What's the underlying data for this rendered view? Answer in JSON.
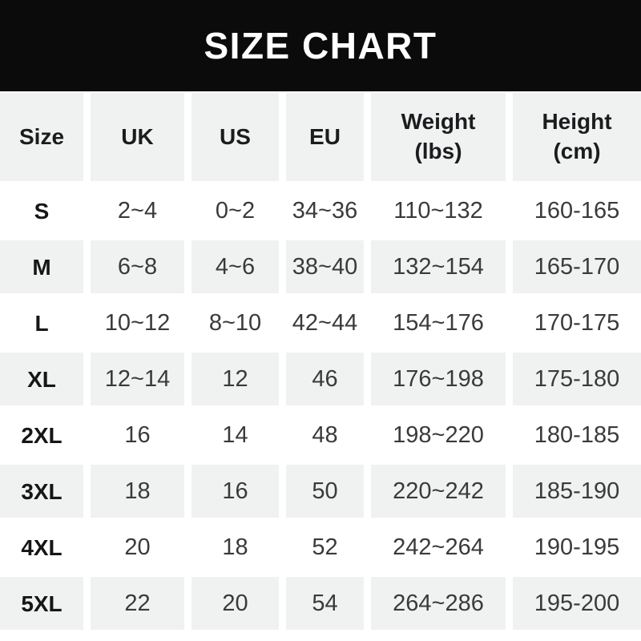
{
  "title": "SIZE CHART",
  "colors": {
    "banner_bg": "#0b0b0b",
    "banner_text": "#ffffff",
    "row_gray": "#f0f1f1",
    "page_bg": "#ffffff",
    "header_text": "#1c1c1e",
    "data_text": "#3a3a3c"
  },
  "table": {
    "headers": [
      {
        "label": "Size"
      },
      {
        "label": "UK"
      },
      {
        "label": "US"
      },
      {
        "label": "EU"
      },
      {
        "label": "Weight",
        "unit": "(lbs)"
      },
      {
        "label": "Height",
        "unit": "(cm)"
      }
    ],
    "rows": [
      {
        "size": "S",
        "uk": "2~4",
        "us": "0~2",
        "eu": "34~36",
        "weight": "110~132",
        "height": "160-165"
      },
      {
        "size": "M",
        "uk": "6~8",
        "us": "4~6",
        "eu": "38~40",
        "weight": "132~154",
        "height": "165-170"
      },
      {
        "size": "L",
        "uk": "10~12",
        "us": "8~10",
        "eu": "42~44",
        "weight": "154~176",
        "height": "170-175"
      },
      {
        "size": "XL",
        "uk": "12~14",
        "us": "12",
        "eu": "46",
        "weight": "176~198",
        "height": "175-180"
      },
      {
        "size": "2XL",
        "uk": "16",
        "us": "14",
        "eu": "48",
        "weight": "198~220",
        "height": "180-185"
      },
      {
        "size": "3XL",
        "uk": "18",
        "us": "16",
        "eu": "50",
        "weight": "220~242",
        "height": "185-190"
      },
      {
        "size": "4XL",
        "uk": "20",
        "us": "18",
        "eu": "52",
        "weight": "242~264",
        "height": "190-195"
      },
      {
        "size": "5XL",
        "uk": "22",
        "us": "20",
        "eu": "54",
        "weight": "264~286",
        "height": "195-200"
      }
    ]
  },
  "chart_data": {
    "type": "table",
    "title": "SIZE CHART",
    "columns": [
      "Size",
      "UK",
      "US",
      "EU",
      "Weight (lbs)",
      "Height (cm)"
    ],
    "rows": [
      [
        "S",
        "2~4",
        "0~2",
        "34~36",
        "110~132",
        "160-165"
      ],
      [
        "M",
        "6~8",
        "4~6",
        "38~40",
        "132~154",
        "165-170"
      ],
      [
        "L",
        "10~12",
        "8~10",
        "42~44",
        "154~176",
        "170-175"
      ],
      [
        "XL",
        "12~14",
        "12",
        "46",
        "176~198",
        "175-180"
      ],
      [
        "2XL",
        "16",
        "14",
        "48",
        "198~220",
        "180-185"
      ],
      [
        "3XL",
        "18",
        "16",
        "50",
        "220~242",
        "185-190"
      ],
      [
        "4XL",
        "20",
        "18",
        "52",
        "242~264",
        "190-195"
      ],
      [
        "5XL",
        "22",
        "20",
        "54",
        "264~286",
        "195-200"
      ]
    ],
    "layout": {
      "banner": "black bar with white centered title at top",
      "row_striping": "header gray, then rows alternate white/gray starting with white",
      "column_gutters": "white 9px gaps between columns"
    }
  }
}
